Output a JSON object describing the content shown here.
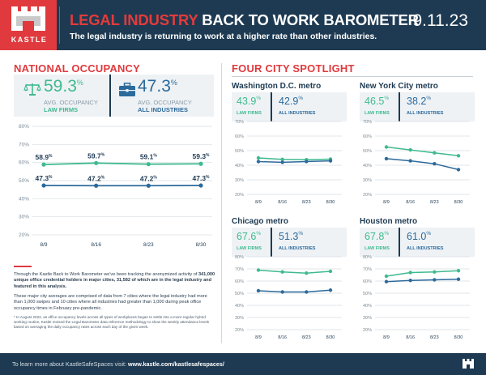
{
  "header": {
    "brand": "KASTLE",
    "title_accent": "LEGAL INDUSTRY",
    "title_rest": " BACK TO WORK BAROMETER",
    "subtitle": "The legal industry is returning to work at a higher rate than other industries.",
    "date": "9.11.23"
  },
  "national": {
    "title": "NATIONAL OCCUPANCY",
    "law_value": "59.3",
    "all_value": "47.3",
    "pct": "%",
    "label_line1": "AVG. OCCUPANCY",
    "law_label": "LAW FIRMS",
    "all_label": "ALL INDUSTRIES"
  },
  "spotlight": {
    "title": "FOUR CITY SPOTLIGHT",
    "law_label": "LAW FIRMS",
    "all_label": "ALL INDUSTRIES",
    "cities": [
      {
        "name": "Washington D.C. metro",
        "law_value": "43.9",
        "all_value": "42.9"
      },
      {
        "name": "New York City metro",
        "law_value": "46.5",
        "all_value": "38.2"
      },
      {
        "name": "Chicago metro",
        "law_value": "67.6",
        "all_value": "51.3"
      },
      {
        "name": "Houston metro",
        "law_value": "67.8",
        "all_value": "61.0"
      }
    ]
  },
  "text": {
    "p1_a": "Through the Kastle Back to Work Barometer we've been tracking the anonymized activity of ",
    "p1_b": "341,000 unique office credential holders in major cities, 31,582 of which are in the legal industry and featured in this analysis.",
    "p2": "These major city averages are comprised of data from 7 cities where the legal industry had more than 1,000 swipes and 10 cities where all industries had greater than 1,000 during peak office occupancy times in February pre-pandemic.",
    "note": "* In August 2022, as office occupancy levels across all types of workplaces began to settle into a more regular hybrid working routine, Kastle revised the Legal Barometer data reference methodology to show the weekly attendance levels based on averaging the daily occupancy rates across each day of the given week."
  },
  "footer": {
    "text": "To learn more about KastleSafeSpaces visit: ",
    "link": "www.kastle.com/kastlesafespaces/"
  },
  "colors": {
    "law": "#3fba8e",
    "all": "#2c6a9c",
    "navy": "#1e3a52",
    "red": "#e03a3e"
  },
  "chart_data": [
    {
      "type": "line",
      "title": "National Occupancy",
      "categories": [
        "8/9",
        "8/16",
        "8/23",
        "8/30"
      ],
      "y_ticks": [
        "20%",
        "30%",
        "40%",
        "50%",
        "60%",
        "70%",
        "80%"
      ],
      "ylim": [
        20,
        80
      ],
      "series": [
        {
          "name": "LAW FIRMS",
          "values": [
            58.9,
            59.7,
            59.1,
            59.3
          ],
          "labels": [
            "58.9",
            "59.7",
            "59.1",
            "59.3"
          ]
        },
        {
          "name": "ALL INDUSTRIES",
          "values": [
            47.3,
            47.2,
            47.2,
            47.3
          ],
          "labels": [
            "47.3",
            "47.2",
            "47.2",
            "47.3"
          ]
        }
      ]
    },
    {
      "type": "line",
      "title": "Washington D.C. metro",
      "categories": [
        "8/9",
        "8/16",
        "8/23",
        "8/30"
      ],
      "y_ticks": [
        "20%",
        "30%",
        "40%",
        "50%",
        "60%",
        "70%"
      ],
      "ylim": [
        20,
        70
      ],
      "series": [
        {
          "name": "LAW FIRMS",
          "values": [
            45,
            44,
            43.8,
            44.2
          ]
        },
        {
          "name": "ALL INDUSTRIES",
          "values": [
            42.5,
            42,
            42.5,
            43
          ]
        }
      ]
    },
    {
      "type": "line",
      "title": "New York City metro",
      "categories": [
        "8/9",
        "8/16",
        "8/23",
        "8/30"
      ],
      "y_ticks": [
        "20%",
        "30%",
        "40%",
        "50%",
        "60%",
        "70%"
      ],
      "ylim": [
        20,
        70
      ],
      "series": [
        {
          "name": "LAW FIRMS",
          "values": [
            52.5,
            50.5,
            48.5,
            46.5
          ]
        },
        {
          "name": "ALL INDUSTRIES",
          "values": [
            44.5,
            43,
            41,
            37
          ]
        }
      ]
    },
    {
      "type": "line",
      "title": "Chicago metro",
      "categories": [
        "8/9",
        "8/16",
        "8/23",
        "8/30"
      ],
      "y_ticks": [
        "20%",
        "30%",
        "40%",
        "50%",
        "60%",
        "70%",
        "80%"
      ],
      "ylim": [
        20,
        80
      ],
      "series": [
        {
          "name": "LAW FIRMS",
          "values": [
            69,
            67.5,
            66.5,
            68
          ]
        },
        {
          "name": "ALL INDUSTRIES",
          "values": [
            52,
            51,
            51,
            52.5
          ]
        }
      ]
    },
    {
      "type": "line",
      "title": "Houston metro",
      "categories": [
        "8/9",
        "8/16",
        "8/23",
        "8/30"
      ],
      "y_ticks": [
        "20%",
        "30%",
        "40%",
        "50%",
        "60%",
        "70%",
        "80%"
      ],
      "ylim": [
        20,
        80
      ],
      "series": [
        {
          "name": "LAW FIRMS",
          "values": [
            64,
            67,
            67.5,
            68.5
          ]
        },
        {
          "name": "ALL INDUSTRIES",
          "values": [
            59.5,
            60.5,
            61,
            61.5
          ]
        }
      ]
    }
  ]
}
